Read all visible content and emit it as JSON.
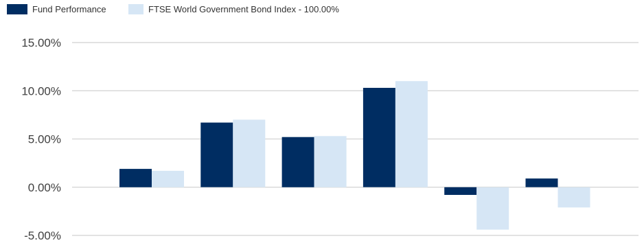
{
  "chart_data": {
    "type": "bar",
    "title": "",
    "xlabel": "",
    "ylabel": "",
    "categories": [
      "",
      "",
      "",
      "",
      "",
      ""
    ],
    "series": [
      {
        "name": "Fund Performance",
        "color": "#002d62",
        "values": [
          1.9,
          6.7,
          5.2,
          10.3,
          -0.8,
          0.9
        ]
      },
      {
        "name": "FTSE World Government Bond Index - 100.00%",
        "color": "#d6e6f5",
        "values": [
          1.7,
          7.0,
          5.3,
          11.0,
          -4.4,
          -2.1
        ]
      }
    ],
    "ylim": [
      -5,
      15
    ],
    "yticks": [
      15,
      10,
      5,
      0,
      -5
    ],
    "ytick_labels": [
      "15.00%",
      "10.00%",
      "5.00%",
      "0.00%",
      "-5.00%"
    ],
    "grid": true,
    "legend_position": "top-left"
  }
}
